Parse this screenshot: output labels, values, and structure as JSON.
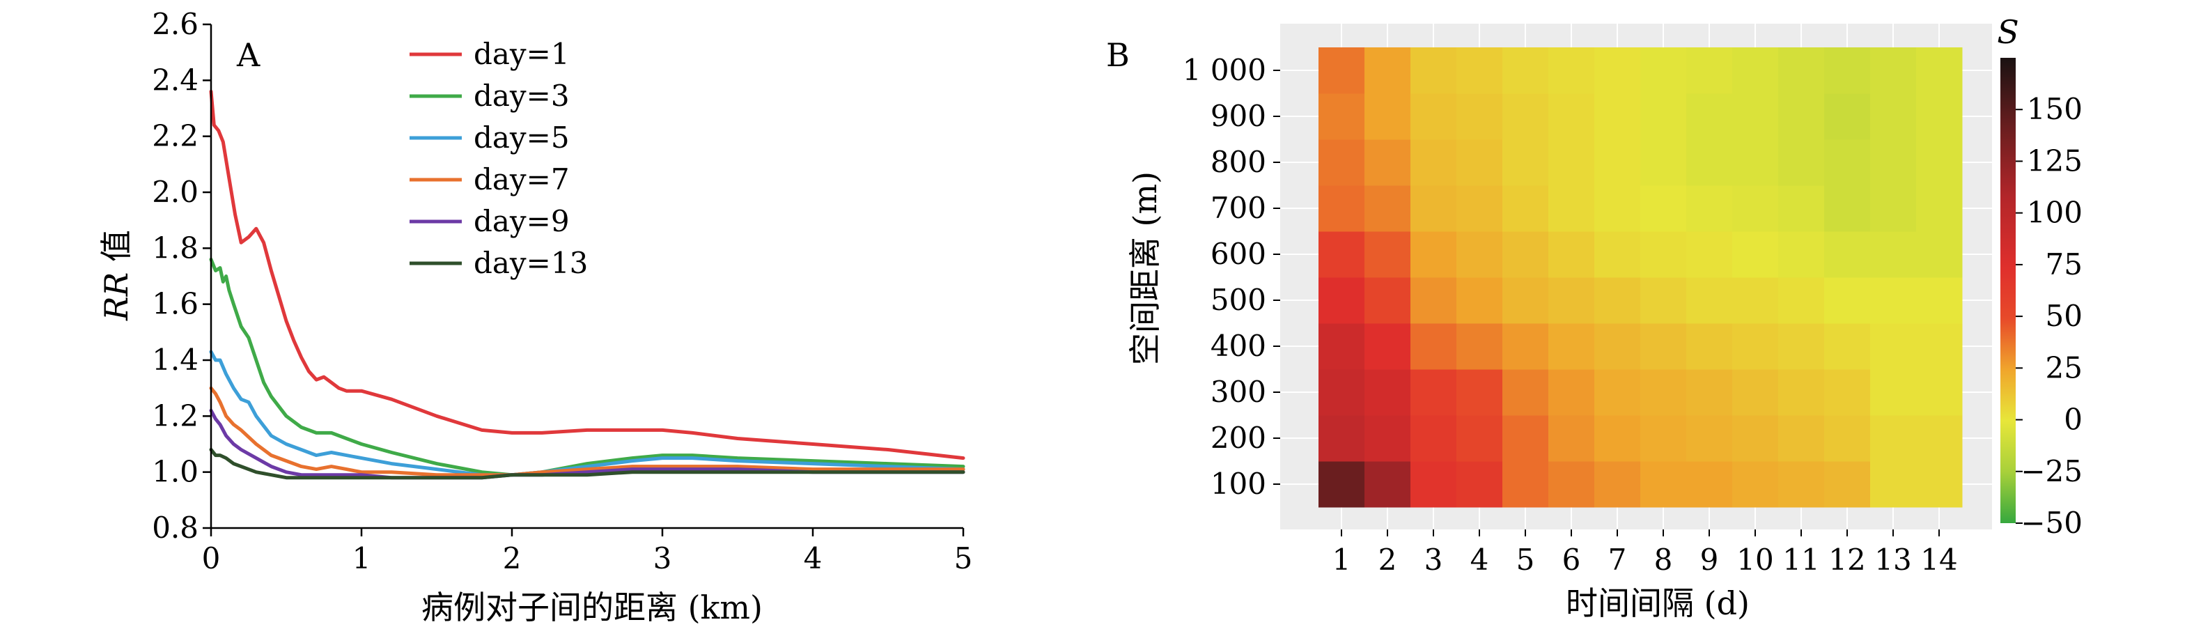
{
  "chart_data": [
    {
      "type": "line",
      "panel": "A",
      "xlabel": "病例对子间的距离 (km)",
      "ylabel_italic": "RR",
      "ylabel_suffix": " 值",
      "xlim": [
        0,
        5
      ],
      "ylim": [
        0.8,
        2.6
      ],
      "xticks": [
        0,
        1,
        2,
        3,
        4,
        5
      ],
      "xtick_labels": [
        "0",
        "1",
        "2",
        "3",
        "4",
        "5"
      ],
      "yticks": [
        0.8,
        1.0,
        1.2,
        1.4,
        1.6,
        1.8,
        2.0,
        2.2,
        2.4,
        2.6
      ],
      "ytick_labels": [
        "0.8",
        "1.0",
        "1.2",
        "1.4",
        "1.6",
        "1.8",
        "2.0",
        "2.2",
        "2.4",
        "2.6"
      ],
      "legend_position": "top-center",
      "series": [
        {
          "name": "day=1",
          "color": "#e0383b",
          "x": [
            0,
            0.02,
            0.05,
            0.08,
            0.12,
            0.16,
            0.2,
            0.25,
            0.3,
            0.35,
            0.4,
            0.45,
            0.5,
            0.55,
            0.6,
            0.65,
            0.7,
            0.75,
            0.8,
            0.85,
            0.9,
            1.0,
            1.2,
            1.5,
            1.8,
            2.0,
            2.2,
            2.5,
            2.8,
            3.0,
            3.2,
            3.5,
            4.0,
            4.5,
            5.0
          ],
          "y": [
            2.36,
            2.24,
            2.22,
            2.18,
            2.05,
            1.92,
            1.82,
            1.84,
            1.87,
            1.82,
            1.72,
            1.63,
            1.54,
            1.47,
            1.41,
            1.36,
            1.33,
            1.34,
            1.32,
            1.3,
            1.29,
            1.29,
            1.26,
            1.2,
            1.15,
            1.14,
            1.14,
            1.15,
            1.15,
            1.15,
            1.14,
            1.12,
            1.1,
            1.08,
            1.05
          ]
        },
        {
          "name": "day=3",
          "color": "#3faa48",
          "x": [
            0,
            0.03,
            0.06,
            0.08,
            0.1,
            0.12,
            0.15,
            0.2,
            0.25,
            0.3,
            0.35,
            0.4,
            0.5,
            0.6,
            0.7,
            0.8,
            0.9,
            1.0,
            1.2,
            1.5,
            1.8,
            2.0,
            2.2,
            2.5,
            2.8,
            3.0,
            3.2,
            3.5,
            4.0,
            4.5,
            5.0
          ],
          "y": [
            1.76,
            1.72,
            1.73,
            1.68,
            1.7,
            1.65,
            1.6,
            1.52,
            1.48,
            1.4,
            1.32,
            1.27,
            1.2,
            1.16,
            1.14,
            1.14,
            1.12,
            1.1,
            1.07,
            1.03,
            1.0,
            0.99,
            1.0,
            1.03,
            1.05,
            1.06,
            1.06,
            1.05,
            1.04,
            1.03,
            1.02
          ]
        },
        {
          "name": "day=5",
          "color": "#3d9fd8",
          "x": [
            0,
            0.03,
            0.06,
            0.1,
            0.15,
            0.2,
            0.25,
            0.3,
            0.4,
            0.5,
            0.6,
            0.7,
            0.8,
            0.9,
            1.0,
            1.2,
            1.5,
            1.8,
            2.0,
            2.2,
            2.5,
            2.8,
            3.0,
            3.2,
            3.5,
            4.0,
            4.5,
            5.0
          ],
          "y": [
            1.43,
            1.4,
            1.4,
            1.35,
            1.3,
            1.26,
            1.25,
            1.2,
            1.13,
            1.1,
            1.08,
            1.06,
            1.07,
            1.06,
            1.05,
            1.03,
            1.01,
            0.99,
            0.99,
            1.0,
            1.02,
            1.04,
            1.05,
            1.05,
            1.04,
            1.03,
            1.02,
            1.01
          ]
        },
        {
          "name": "day=7",
          "color": "#e8712e",
          "x": [
            0,
            0.03,
            0.06,
            0.1,
            0.15,
            0.2,
            0.3,
            0.4,
            0.5,
            0.6,
            0.7,
            0.8,
            0.9,
            1.0,
            1.2,
            1.5,
            1.8,
            2.0,
            2.2,
            2.5,
            2.8,
            3.0,
            3.2,
            3.5,
            4.0,
            4.5,
            5.0
          ],
          "y": [
            1.3,
            1.28,
            1.25,
            1.2,
            1.17,
            1.15,
            1.1,
            1.06,
            1.04,
            1.02,
            1.01,
            1.02,
            1.01,
            1.0,
            1.0,
            0.99,
            0.99,
            0.99,
            1.0,
            1.01,
            1.02,
            1.02,
            1.02,
            1.02,
            1.01,
            1.01,
            1.01
          ]
        },
        {
          "name": "day=9",
          "color": "#6c3aa6",
          "x": [
            0,
            0.03,
            0.06,
            0.1,
            0.15,
            0.2,
            0.3,
            0.4,
            0.5,
            0.6,
            0.7,
            0.8,
            0.9,
            1.0,
            1.2,
            1.5,
            1.8,
            2.0,
            2.2,
            2.5,
            2.8,
            3.0,
            3.2,
            3.5,
            4.0,
            4.5,
            5.0
          ],
          "y": [
            1.22,
            1.19,
            1.17,
            1.13,
            1.1,
            1.08,
            1.05,
            1.02,
            1.0,
            0.99,
            0.99,
            0.99,
            0.99,
            0.99,
            0.98,
            0.98,
            0.98,
            0.99,
            0.99,
            1.0,
            1.01,
            1.01,
            1.01,
            1.01,
            1.0,
            1.0,
            1.0
          ]
        },
        {
          "name": "day=13",
          "color": "#2f4f2b",
          "x": [
            0,
            0.03,
            0.06,
            0.1,
            0.15,
            0.2,
            0.3,
            0.4,
            0.5,
            0.6,
            0.7,
            0.8,
            0.9,
            1.0,
            1.2,
            1.5,
            1.8,
            2.0,
            2.2,
            2.5,
            2.8,
            3.0,
            3.2,
            3.5,
            4.0,
            4.5,
            5.0
          ],
          "y": [
            1.08,
            1.06,
            1.06,
            1.05,
            1.03,
            1.02,
            1.0,
            0.99,
            0.98,
            0.98,
            0.98,
            0.98,
            0.98,
            0.98,
            0.98,
            0.98,
            0.98,
            0.99,
            0.99,
            0.99,
            1.0,
            1.0,
            1.0,
            1.0,
            1.0,
            1.0,
            1.0
          ]
        }
      ]
    },
    {
      "type": "heatmap",
      "panel": "B",
      "xlabel": "时间间隔 (d)",
      "ylabel": "空间距离 (m)",
      "x_categories": [
        "1",
        "2",
        "3",
        "4",
        "5",
        "6",
        "7",
        "8",
        "9",
        "10",
        "11",
        "12",
        "13",
        "14"
      ],
      "y_categories": [
        "100",
        "200",
        "300",
        "400",
        "500",
        "600",
        "700",
        "800",
        "900",
        "1 000"
      ],
      "colorbar_title": "S",
      "colorbar_range": [
        -50,
        175
      ],
      "colorbar_ticks": [
        -50,
        -25,
        0,
        25,
        50,
        75,
        100,
        125,
        150
      ],
      "colorbar_tick_labels": [
        "−50",
        "−25",
        "0",
        "25",
        "50",
        "75",
        "100",
        "125",
        "150"
      ],
      "grid": true,
      "values": [
        [
          145,
          120,
          70,
          65,
          40,
          35,
          30,
          25,
          25,
          22,
          20,
          18,
          5,
          5
        ],
        [
          100,
          90,
          65,
          55,
          40,
          30,
          25,
          22,
          20,
          18,
          15,
          12,
          5,
          5
        ],
        [
          95,
          85,
          60,
          50,
          35,
          28,
          22,
          20,
          18,
          15,
          12,
          10,
          2,
          2
        ],
        [
          90,
          75,
          40,
          35,
          28,
          22,
          18,
          15,
          12,
          10,
          8,
          5,
          2,
          2
        ],
        [
          75,
          55,
          30,
          25,
          18,
          15,
          12,
          8,
          5,
          5,
          3,
          0,
          0,
          0
        ],
        [
          60,
          45,
          25,
          20,
          15,
          10,
          5,
          3,
          2,
          0,
          -2,
          -5,
          -5,
          -5
        ],
        [
          40,
          35,
          18,
          16,
          10,
          5,
          2,
          0,
          -2,
          -3,
          -5,
          -10,
          -8,
          -5
        ],
        [
          38,
          30,
          16,
          14,
          8,
          5,
          2,
          -2,
          -5,
          -5,
          -8,
          -10,
          -8,
          -5
        ],
        [
          35,
          25,
          14,
          12,
          8,
          5,
          2,
          -2,
          -5,
          -5,
          -8,
          -12,
          -8,
          -5
        ],
        [
          38,
          25,
          12,
          10,
          6,
          4,
          2,
          -2,
          -3,
          -5,
          -8,
          -10,
          -8,
          -5
        ]
      ]
    }
  ]
}
